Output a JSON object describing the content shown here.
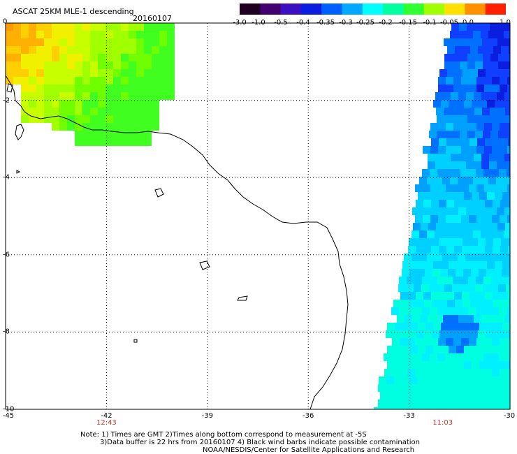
{
  "title": "ASCAT 25KM MLE-1 descending",
  "date": "20160107",
  "colorbar": {
    "ticks": [
      "-3.0",
      "-1.0",
      "-0.5",
      "-0.4",
      "-0.35",
      "-0.3",
      "-0.25",
      "-0.2",
      "-0.15",
      "-0.1",
      "-0.05",
      "0.0",
      "1.0"
    ],
    "colors": [
      "#200020",
      "#400070",
      "#3a10c0",
      "#0a1ee0",
      "#0060ff",
      "#00a8ff",
      "#00ffff",
      "#00ffa0",
      "#30ff30",
      "#a0ff00",
      "#ffe000",
      "#ff9000",
      "#ff2000"
    ]
  },
  "axes": {
    "lat_labels": [
      "0",
      "-2",
      "-4",
      "-6",
      "-8",
      "-10"
    ],
    "lon_labels": [
      "-45",
      "-42",
      "-39",
      "-36",
      "-33",
      "-30"
    ],
    "lat_range": [
      0,
      -10
    ],
    "lon_range": [
      -45,
      -30
    ]
  },
  "pass_times": [
    {
      "lon": -42,
      "label": "12:43"
    },
    {
      "lon": -32,
      "label": "11:03"
    }
  ],
  "notes": {
    "line1": "Note: 1) Times are GMT 2)Times along bottom correspond to measurement at -5S",
    "line2": "3)Data buffer is 22 hrs from 20160107 4) Black wind barbs indicate possible contamination",
    "line3": "NOAA/NESDIS/Center for Satellite Applications and Research"
  },
  "colors": {
    "grid": "#000000",
    "coast": "#000000",
    "time_label": "#c0392b"
  }
}
